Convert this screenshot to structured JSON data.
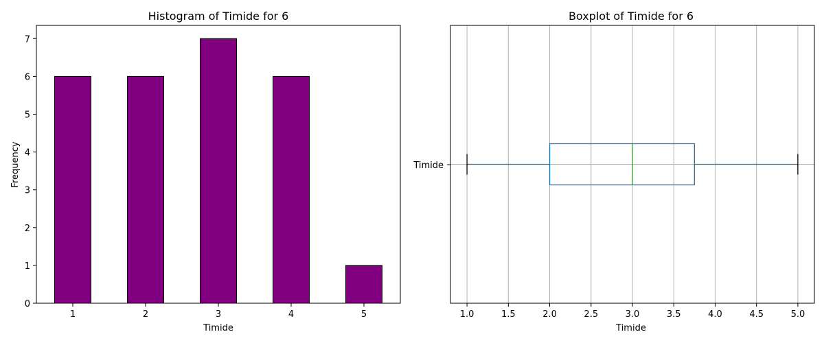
{
  "chart_data": [
    {
      "type": "bar",
      "title": "Histogram of Timide for 6",
      "xlabel": "Timide",
      "ylabel": "Frequency",
      "categories": [
        "1",
        "2",
        "3",
        "4",
        "5"
      ],
      "values": [
        6,
        6,
        7,
        6,
        1
      ],
      "ylim": [
        0,
        7.35
      ],
      "yticks": [
        "0",
        "1",
        "2",
        "3",
        "4",
        "5",
        "6",
        "7"
      ],
      "bar_color": "#800080",
      "edge_color": "#000000",
      "grid": false
    },
    {
      "type": "boxplot",
      "title": "Boxplot of Timide for 6",
      "xlabel": "Timide",
      "category_label": "Timide",
      "orientation": "horizontal",
      "stats": {
        "whislo": 1.0,
        "q1": 2.0,
        "median": 3.0,
        "q3": 3.75,
        "whishi": 5.0
      },
      "xlim": [
        0.8,
        5.2
      ],
      "xticks": [
        "1.0",
        "1.5",
        "2.0",
        "2.5",
        "3.0",
        "3.5",
        "4.0",
        "4.5",
        "5.0"
      ],
      "box_color": "#1f77b4",
      "median_color": "#2ca02c",
      "cap_color": "#000000",
      "grid": true
    }
  ]
}
